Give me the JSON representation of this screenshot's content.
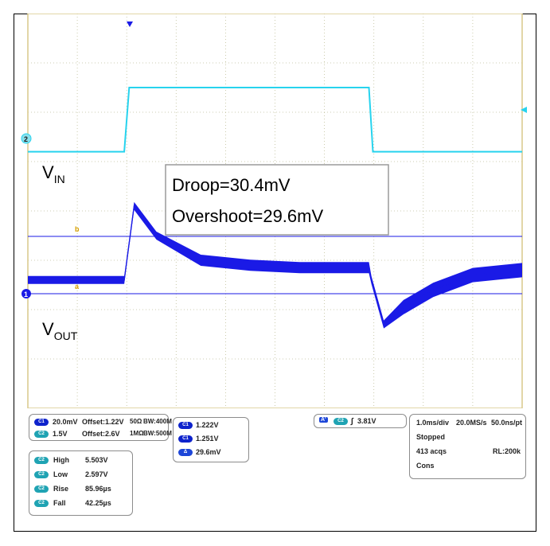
{
  "colors": {
    "vin_trace": "#27d3ee",
    "vout_trace": "#1a1ae6",
    "grid": "#bfbf9a",
    "border": "#d9c98a",
    "callout_border": "#9a9a9a"
  },
  "labels": {
    "vin": {
      "main": "V",
      "sub": "IN"
    },
    "vout": {
      "main": "V",
      "sub": "OUT"
    },
    "callout": {
      "line1": "Droop=30.4mV",
      "line2": "Overshoot=29.6mV"
    },
    "cursor_b": "b",
    "cursor_a": "a",
    "ch2_marker": "2",
    "ch1_marker": "1"
  },
  "readouts": {
    "ch1": {
      "chip": "C1",
      "scale": "20.0mV",
      "offset": "Offset:1.22V",
      "coupling": "50Ω",
      "bw": "BW:400M"
    },
    "ch2": {
      "chip": "C2",
      "scale": "1.5V",
      "offset": "Offset:2.6V",
      "coupling": "1MΩ",
      "bw": "BW:500M"
    },
    "cursors": [
      {
        "chip": "C1",
        "value": "1.222V"
      },
      {
        "chip": "C1",
        "value": "1.251V"
      },
      {
        "chip": "Δ",
        "value": "29.6mV"
      }
    ],
    "trigger": {
      "mode": "A'",
      "chip": "C2",
      "edge": "∫",
      "level": "3.81V"
    },
    "acq": {
      "timebase": "1.0ms/div",
      "rate": "20.0MS/s",
      "pt": "50.0ns/pt",
      "status": "Stopped",
      "acqs": "413 acqs",
      "rl": "RL:200k",
      "mode": "Cons"
    },
    "measurements": [
      {
        "chip": "C2",
        "name": "High",
        "value": "5.503V"
      },
      {
        "chip": "C2",
        "name": "Low",
        "value": "2.597V"
      },
      {
        "chip": "C2",
        "name": "Rise",
        "value": "85.96µs"
      },
      {
        "chip": "C2",
        "name": "Fall",
        "value": "42.25µs"
      }
    ]
  },
  "chart_data": {
    "type": "line",
    "title": "",
    "grid": true,
    "divisions": {
      "x": 10,
      "y": 8
    },
    "time_per_div": "1.0ms/div",
    "x_units": "ms",
    "xlim": [
      0,
      10
    ],
    "series": [
      {
        "name": "VIN",
        "y_unit": "divisions",
        "ylim": [
          -4,
          4
        ],
        "x": [
          0,
          1.95,
          2.05,
          6.9,
          6.98,
          10
        ],
        "y": [
          1.2,
          1.2,
          2.5,
          2.5,
          1.2,
          1.2
        ]
      },
      {
        "name": "VOUT",
        "y_unit": "divisions",
        "ylim": [
          -4,
          4
        ],
        "x": [
          0,
          1.95,
          2.15,
          2.6,
          3.5,
          4.5,
          5.5,
          6.9,
          6.95,
          7.2,
          7.6,
          8.2,
          9.0,
          10
        ],
        "y": [
          -1.4,
          -1.4,
          0.1,
          -0.5,
          -1.0,
          -1.1,
          -1.15,
          -1.15,
          -1.4,
          -2.3,
          -1.95,
          -1.6,
          -1.3,
          -1.2
        ]
      }
    ],
    "annotations": [
      "Droop=30.4mV",
      "Overshoot=29.6mV"
    ]
  }
}
